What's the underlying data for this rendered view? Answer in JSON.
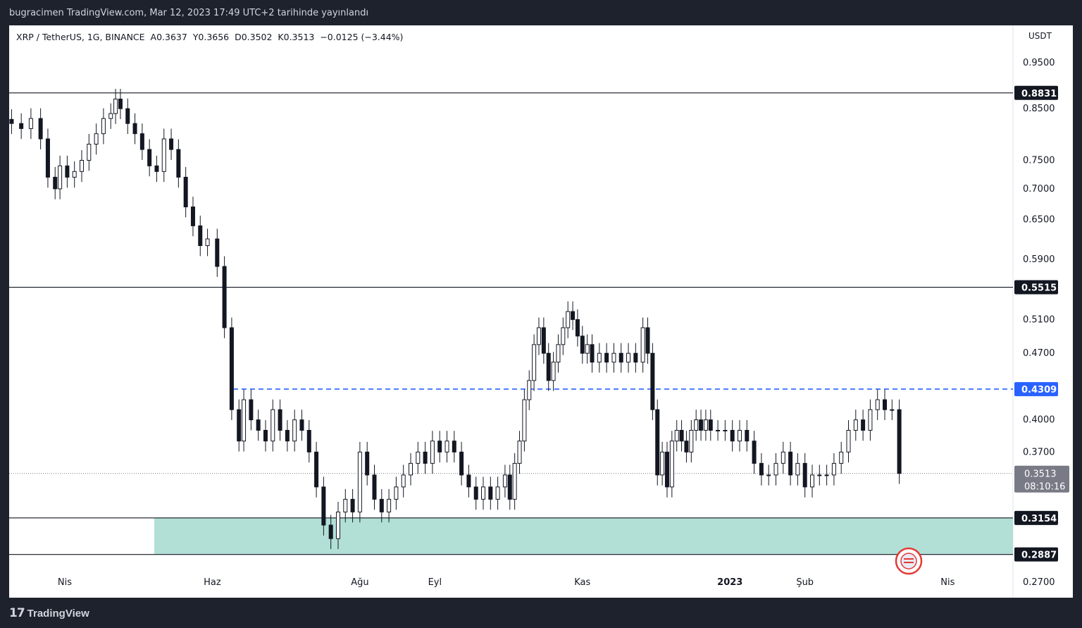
{
  "header": {
    "published_line": "bugracimen TradingView.com, Mar 12, 2023 17:49 UTC+2 tarihinde yayınlandı"
  },
  "legend": {
    "symbol": "XRP / TetherUS, 1G, BINANCE",
    "open": "A0.3637",
    "high": "Y0.3656",
    "low": "D0.3502",
    "close": "K0.3513",
    "change": "−0.0125 (−3.44%)"
  },
  "footer": {
    "brand": "TradingView",
    "brand_glyph": "17"
  },
  "chart_data": {
    "type": "candlestick",
    "unit": "USDT",
    "y_scale": "log",
    "ylim": [
      0.26,
      1.04
    ],
    "y_ticks": [
      "0.9500",
      "0.8500",
      "0.7500",
      "0.7000",
      "0.6500",
      "0.5900",
      "0.5100",
      "0.4700",
      "0.4000",
      "0.3700",
      "0.2700"
    ],
    "x_ticks": [
      {
        "label": "Nis",
        "date": "2022-04-01"
      },
      {
        "label": "Haz",
        "date": "2022-06-01"
      },
      {
        "label": "Ağu",
        "date": "2022-08-01"
      },
      {
        "label": "Eyl",
        "date": "2022-09-01"
      },
      {
        "label": "Kas",
        "date": "2022-11-01"
      },
      {
        "label": "2023",
        "date": "2023-01-01"
      },
      {
        "label": "Şub",
        "date": "2023-02-01"
      },
      {
        "label": "Nis",
        "date": "2023-04-01"
      }
    ],
    "horizontal_lines": [
      {
        "value": 0.8831,
        "label": "0.8831",
        "style": "solid",
        "color": "#131722"
      },
      {
        "value": 0.5515,
        "label": "0.5515",
        "style": "solid",
        "color": "#131722"
      },
      {
        "value": 0.4309,
        "label": "0.4309",
        "style": "dashed",
        "color": "#2962ff"
      },
      {
        "value": 0.3154,
        "label": "0.3154",
        "style": "solid",
        "color": "#131722"
      },
      {
        "value": 0.2887,
        "label": "0.2887",
        "style": "solid",
        "color": "#131722"
      }
    ],
    "zone": {
      "from_date": "2022-05-08",
      "low": 0.2887,
      "high": 0.3154,
      "color": "#b2e0d6"
    },
    "last_price": {
      "value": 0.3513,
      "label": "0.3513",
      "countdown": "08:10:16",
      "color": "#787b86"
    },
    "series": [
      {
        "date": "2022-03-10",
        "close": 0.82
      },
      {
        "date": "2022-03-14",
        "close": 0.81
      },
      {
        "date": "2022-03-18",
        "close": 0.83
      },
      {
        "date": "2022-03-22",
        "close": 0.79
      },
      {
        "date": "2022-03-25",
        "close": 0.72
      },
      {
        "date": "2022-03-28",
        "close": 0.7
      },
      {
        "date": "2022-03-30",
        "close": 0.74
      },
      {
        "date": "2022-04-02",
        "close": 0.72
      },
      {
        "date": "2022-04-05",
        "close": 0.73
      },
      {
        "date": "2022-04-08",
        "close": 0.75
      },
      {
        "date": "2022-04-11",
        "close": 0.78
      },
      {
        "date": "2022-04-14",
        "close": 0.8
      },
      {
        "date": "2022-04-17",
        "close": 0.83
      },
      {
        "date": "2022-04-20",
        "close": 0.84
      },
      {
        "date": "2022-04-22",
        "close": 0.87
      },
      {
        "date": "2022-04-24",
        "close": 0.85
      },
      {
        "date": "2022-04-27",
        "close": 0.82
      },
      {
        "date": "2022-04-30",
        "close": 0.8
      },
      {
        "date": "2022-05-03",
        "close": 0.77
      },
      {
        "date": "2022-05-06",
        "close": 0.74
      },
      {
        "date": "2022-05-09",
        "close": 0.73
      },
      {
        "date": "2022-05-12",
        "close": 0.79
      },
      {
        "date": "2022-05-15",
        "close": 0.77
      },
      {
        "date": "2022-05-18",
        "close": 0.72
      },
      {
        "date": "2022-05-21",
        "close": 0.67
      },
      {
        "date": "2022-05-24",
        "close": 0.64
      },
      {
        "date": "2022-05-27",
        "close": 0.61
      },
      {
        "date": "2022-05-30",
        "close": 0.62
      },
      {
        "date": "2022-06-03",
        "close": 0.58
      },
      {
        "date": "2022-06-06",
        "close": 0.5
      },
      {
        "date": "2022-06-09",
        "close": 0.41
      },
      {
        "date": "2022-06-12",
        "close": 0.38
      },
      {
        "date": "2022-06-14",
        "close": 0.42
      },
      {
        "date": "2022-06-17",
        "close": 0.4
      },
      {
        "date": "2022-06-20",
        "close": 0.39
      },
      {
        "date": "2022-06-23",
        "close": 0.38
      },
      {
        "date": "2022-06-26",
        "close": 0.41
      },
      {
        "date": "2022-06-29",
        "close": 0.39
      },
      {
        "date": "2022-07-02",
        "close": 0.38
      },
      {
        "date": "2022-07-05",
        "close": 0.4
      },
      {
        "date": "2022-07-08",
        "close": 0.39
      },
      {
        "date": "2022-07-11",
        "close": 0.37
      },
      {
        "date": "2022-07-14",
        "close": 0.34
      },
      {
        "date": "2022-07-17",
        "close": 0.31
      },
      {
        "date": "2022-07-20",
        "close": 0.3
      },
      {
        "date": "2022-07-23",
        "close": 0.32
      },
      {
        "date": "2022-07-26",
        "close": 0.33
      },
      {
        "date": "2022-07-29",
        "close": 0.32
      },
      {
        "date": "2022-08-01",
        "close": 0.37
      },
      {
        "date": "2022-08-04",
        "close": 0.35
      },
      {
        "date": "2022-08-07",
        "close": 0.33
      },
      {
        "date": "2022-08-10",
        "close": 0.32
      },
      {
        "date": "2022-08-13",
        "close": 0.33
      },
      {
        "date": "2022-08-16",
        "close": 0.34
      },
      {
        "date": "2022-08-19",
        "close": 0.35
      },
      {
        "date": "2022-08-22",
        "close": 0.36
      },
      {
        "date": "2022-08-25",
        "close": 0.37
      },
      {
        "date": "2022-08-28",
        "close": 0.36
      },
      {
        "date": "2022-08-31",
        "close": 0.38
      },
      {
        "date": "2022-09-03",
        "close": 0.37
      },
      {
        "date": "2022-09-06",
        "close": 0.38
      },
      {
        "date": "2022-09-09",
        "close": 0.37
      },
      {
        "date": "2022-09-12",
        "close": 0.35
      },
      {
        "date": "2022-09-15",
        "close": 0.34
      },
      {
        "date": "2022-09-18",
        "close": 0.33
      },
      {
        "date": "2022-09-21",
        "close": 0.34
      },
      {
        "date": "2022-09-24",
        "close": 0.33
      },
      {
        "date": "2022-09-27",
        "close": 0.34
      },
      {
        "date": "2022-09-30",
        "close": 0.35
      },
      {
        "date": "2022-10-02",
        "close": 0.33
      },
      {
        "date": "2022-10-04",
        "close": 0.36
      },
      {
        "date": "2022-10-06",
        "close": 0.38
      },
      {
        "date": "2022-10-08",
        "close": 0.42
      },
      {
        "date": "2022-10-10",
        "close": 0.44
      },
      {
        "date": "2022-10-12",
        "close": 0.48
      },
      {
        "date": "2022-10-14",
        "close": 0.5
      },
      {
        "date": "2022-10-16",
        "close": 0.47
      },
      {
        "date": "2022-10-18",
        "close": 0.44
      },
      {
        "date": "2022-10-20",
        "close": 0.46
      },
      {
        "date": "2022-10-22",
        "close": 0.48
      },
      {
        "date": "2022-10-24",
        "close": 0.5
      },
      {
        "date": "2022-10-26",
        "close": 0.52
      },
      {
        "date": "2022-10-28",
        "close": 0.51
      },
      {
        "date": "2022-10-30",
        "close": 0.49
      },
      {
        "date": "2022-11-01",
        "close": 0.47
      },
      {
        "date": "2022-11-03",
        "close": 0.48
      },
      {
        "date": "2022-11-05",
        "close": 0.46
      },
      {
        "date": "2022-11-08",
        "close": 0.47
      },
      {
        "date": "2022-11-11",
        "close": 0.46
      },
      {
        "date": "2022-11-14",
        "close": 0.47
      },
      {
        "date": "2022-11-17",
        "close": 0.46
      },
      {
        "date": "2022-11-20",
        "close": 0.47
      },
      {
        "date": "2022-11-23",
        "close": 0.46
      },
      {
        "date": "2022-11-26",
        "close": 0.5
      },
      {
        "date": "2022-11-28",
        "close": 0.47
      },
      {
        "date": "2022-11-30",
        "close": 0.41
      },
      {
        "date": "2022-12-02",
        "close": 0.35
      },
      {
        "date": "2022-12-04",
        "close": 0.37
      },
      {
        "date": "2022-12-06",
        "close": 0.34
      },
      {
        "date": "2022-12-08",
        "close": 0.38
      },
      {
        "date": "2022-12-10",
        "close": 0.39
      },
      {
        "date": "2022-12-12",
        "close": 0.38
      },
      {
        "date": "2022-12-14",
        "close": 0.37
      },
      {
        "date": "2022-12-16",
        "close": 0.39
      },
      {
        "date": "2022-12-18",
        "close": 0.4
      },
      {
        "date": "2022-12-20",
        "close": 0.39
      },
      {
        "date": "2022-12-22",
        "close": 0.4
      },
      {
        "date": "2022-12-24",
        "close": 0.39
      },
      {
        "date": "2022-12-27",
        "close": 0.39
      },
      {
        "date": "2022-12-30",
        "close": 0.39
      },
      {
        "date": "2023-01-02",
        "close": 0.38
      },
      {
        "date": "2023-01-05",
        "close": 0.39
      },
      {
        "date": "2023-01-08",
        "close": 0.38
      },
      {
        "date": "2023-01-11",
        "close": 0.36
      },
      {
        "date": "2023-01-14",
        "close": 0.35
      },
      {
        "date": "2023-01-17",
        "close": 0.35
      },
      {
        "date": "2023-01-20",
        "close": 0.36
      },
      {
        "date": "2023-01-23",
        "close": 0.37
      },
      {
        "date": "2023-01-26",
        "close": 0.35
      },
      {
        "date": "2023-01-29",
        "close": 0.36
      },
      {
        "date": "2023-02-01",
        "close": 0.34
      },
      {
        "date": "2023-02-04",
        "close": 0.35
      },
      {
        "date": "2023-02-07",
        "close": 0.35
      },
      {
        "date": "2023-02-10",
        "close": 0.35
      },
      {
        "date": "2023-02-13",
        "close": 0.36
      },
      {
        "date": "2023-02-16",
        "close": 0.37
      },
      {
        "date": "2023-02-19",
        "close": 0.39
      },
      {
        "date": "2023-02-22",
        "close": 0.4
      },
      {
        "date": "2023-02-25",
        "close": 0.39
      },
      {
        "date": "2023-02-28",
        "close": 0.41
      },
      {
        "date": "2023-03-03",
        "close": 0.42
      },
      {
        "date": "2023-03-06",
        "close": 0.41
      },
      {
        "date": "2023-03-09",
        "close": 0.41
      },
      {
        "date": "2023-03-12",
        "close": 0.3513
      }
    ]
  }
}
